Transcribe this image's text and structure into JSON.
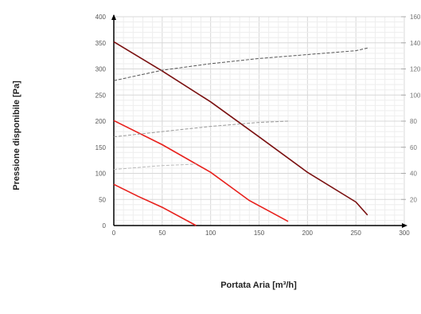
{
  "chart_data": {
    "type": "line",
    "xlabel": "Portata Aria [m³/h]",
    "ylabel": "Pressione disponibile [Pa]",
    "xlim": [
      0,
      300
    ],
    "ylim": [
      0,
      400
    ],
    "y2lim": [
      0,
      160
    ],
    "x_ticks": [
      "0",
      "50",
      "100",
      "150",
      "200",
      "250",
      "300"
    ],
    "y_ticks": [
      "0",
      "50",
      "100",
      "150",
      "200",
      "250",
      "300",
      "350",
      "400"
    ],
    "y2_ticks": [
      "20",
      "40",
      "60",
      "80",
      "100",
      "120",
      "140",
      "160"
    ],
    "grid": true,
    "series": [
      {
        "color": "#7a1010",
        "style": "solid",
        "axis": "left",
        "x": [
          0,
          50,
          100,
          150,
          200,
          250,
          262
        ],
        "y": [
          352,
          296,
          237,
          170,
          102,
          45,
          20
        ]
      },
      {
        "color": "#e8201c",
        "style": "solid",
        "axis": "left",
        "x": [
          0,
          50,
          100,
          120,
          140,
          160,
          180
        ],
        "y": [
          201,
          155,
          102,
          75,
          48,
          28,
          8
        ]
      },
      {
        "color": "#e8201c",
        "style": "solid",
        "axis": "left",
        "x": [
          0,
          25,
          50,
          85
        ],
        "y": [
          79,
          56,
          35,
          0
        ]
      },
      {
        "color": "#555555",
        "style": "dashed",
        "axis": "right",
        "x": [
          0,
          50,
          100,
          150,
          200,
          250,
          262
        ],
        "y": [
          111,
          119,
          124,
          128,
          131,
          134,
          136
        ]
      },
      {
        "color": "#999999",
        "style": "dashed",
        "axis": "right",
        "x": [
          0,
          50,
          100,
          150,
          180
        ],
        "y": [
          68,
          72,
          76,
          79,
          80
        ]
      },
      {
        "color": "#bbbbbb",
        "style": "dashed",
        "axis": "right",
        "x": [
          0,
          50,
          85
        ],
        "y": [
          43,
          46,
          47
        ]
      }
    ]
  }
}
